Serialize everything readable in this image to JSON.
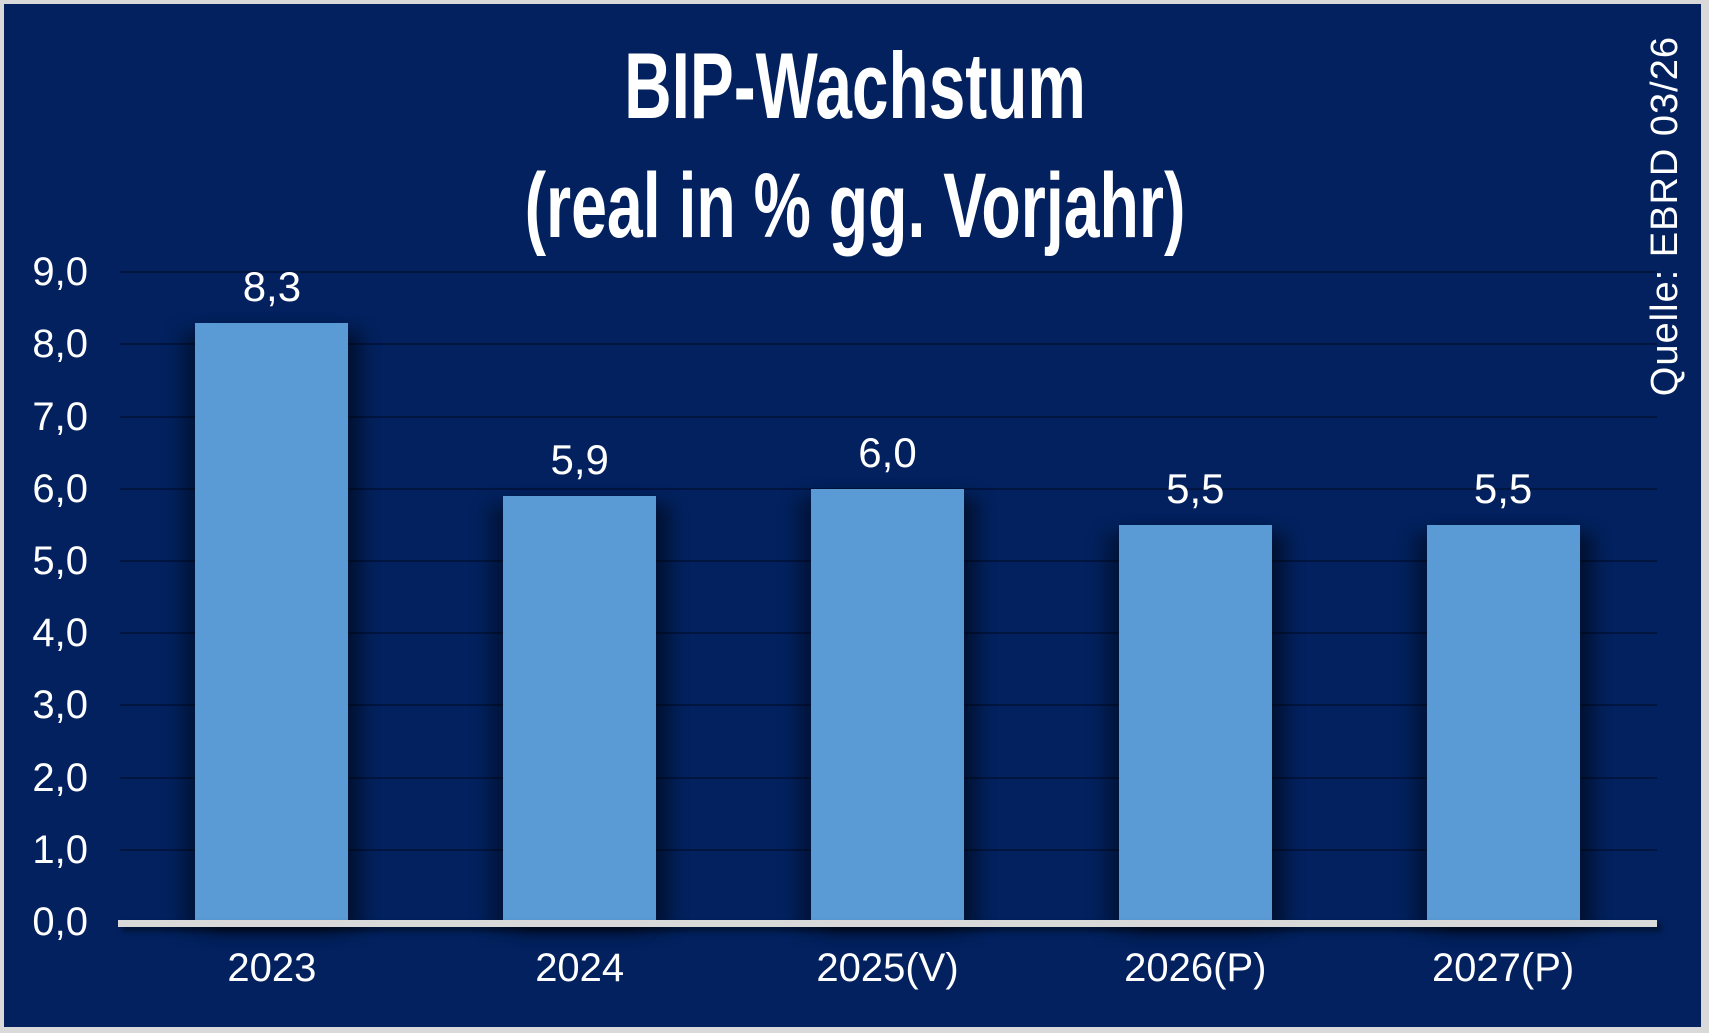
{
  "title": {
    "line1": "BIP-Wachstum",
    "line2": "(real in % gg. Vorjahr)"
  },
  "source": {
    "label": "Quelle: EBRD 03/26"
  },
  "colors": {
    "background": "#02215E",
    "bar": "#5B9BD5",
    "axis_line": "#D9D9D9",
    "frame_border": "#D9D9D9",
    "text": "#FFFFFF"
  },
  "chart_data": {
    "type": "bar",
    "title": "BIP-Wachstum (real in % gg. Vorjahr)",
    "categories": [
      "2023",
      "2024",
      "2025(V)",
      "2026(P)",
      "2027(P)"
    ],
    "values": [
      8.3,
      5.9,
      6.0,
      5.5,
      5.5
    ],
    "data_labels": [
      "8,3",
      "5,9",
      "6,0",
      "5,5",
      "5,5"
    ],
    "ylim": [
      0,
      9
    ],
    "y_tick_step": 1,
    "y_tick_labels": [
      "0,0",
      "1,0",
      "2,0",
      "3,0",
      "4,0",
      "5,0",
      "6,0",
      "7,0",
      "8,0",
      "9,0"
    ],
    "grid": true,
    "legend": false,
    "xlabel": "",
    "ylabel": ""
  }
}
